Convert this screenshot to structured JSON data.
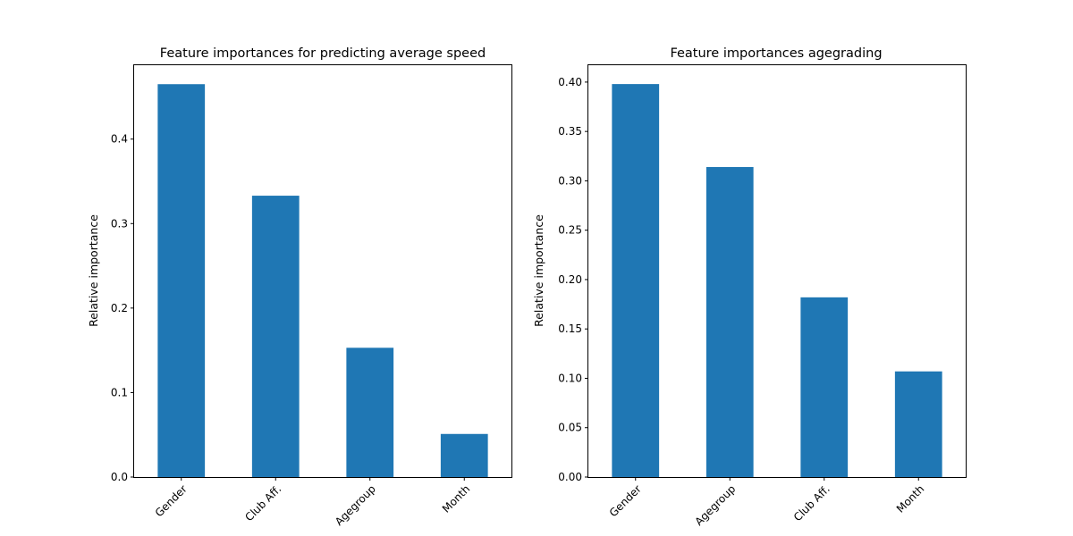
{
  "colors": {
    "bar": "#1f77b4",
    "background": "#ffffff",
    "axes": "#000000"
  },
  "chart_data": [
    {
      "type": "bar",
      "title": "Feature importances for predicting average speed",
      "xlabel": "",
      "ylabel": "Relative importance",
      "categories": [
        "Gender",
        "Club Aff.",
        "Agegroup",
        "Month"
      ],
      "values": [
        0.465,
        0.333,
        0.153,
        0.051
      ],
      "ylim": [
        0,
        0.4885
      ],
      "yticks": [
        0.0,
        0.1,
        0.2,
        0.3,
        0.4
      ],
      "ytick_labels": [
        "0.0",
        "0.1",
        "0.2",
        "0.3",
        "0.4"
      ],
      "grid": false,
      "legend": "none"
    },
    {
      "type": "bar",
      "title": "Feature importances agegrading",
      "xlabel": "",
      "ylabel": "Relative importance",
      "categories": [
        "Gender",
        "Agegroup",
        "Club Aff.",
        "Month"
      ],
      "values": [
        0.398,
        0.314,
        0.182,
        0.107
      ],
      "ylim": [
        0,
        0.418
      ],
      "yticks": [
        0.0,
        0.05,
        0.1,
        0.15,
        0.2,
        0.25,
        0.3,
        0.35,
        0.4
      ],
      "ytick_labels": [
        "0.00",
        "0.05",
        "0.10",
        "0.15",
        "0.20",
        "0.25",
        "0.30",
        "0.35",
        "0.40"
      ],
      "grid": false,
      "legend": "none"
    }
  ]
}
